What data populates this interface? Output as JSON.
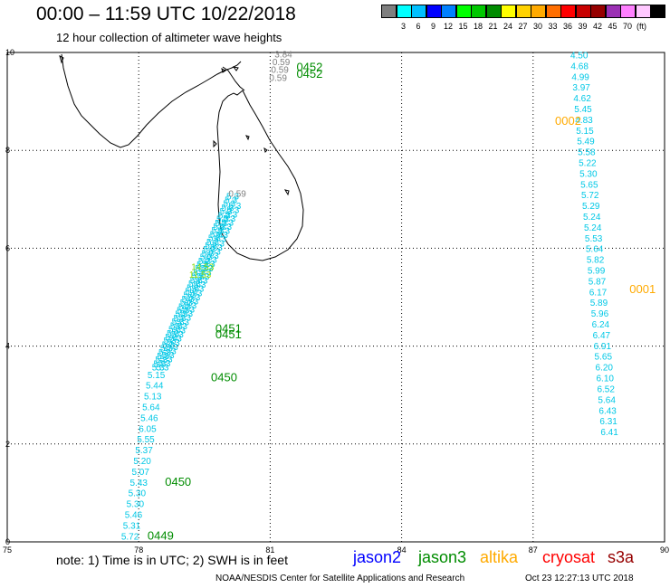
{
  "header": {
    "title": "00:00 – 11:59 UTC 10/22/2018",
    "subtitle": "12 hour collection of altimeter wave heights"
  },
  "colorbar": {
    "colors": [
      "#7f7f7f",
      "#00ffff",
      "#00c0ff",
      "#0000ff",
      "#0080ff",
      "#00ff00",
      "#00c800",
      "#008c00",
      "#ffff00",
      "#ffd200",
      "#ffaa00",
      "#ff6e00",
      "#ff0000",
      "#c80000",
      "#960000",
      "#9b30b4",
      "#ff80ff",
      "#ffc8ff",
      "#000000"
    ],
    "labels": [
      "3",
      "6",
      "9",
      "12",
      "15",
      "18",
      "21",
      "24",
      "27",
      "30",
      "33",
      "36",
      "39",
      "42",
      "45",
      "70"
    ],
    "unit": "(ft)"
  },
  "axes": {
    "x_ticks": [
      "75",
      "78",
      "81",
      "84",
      "87",
      "90"
    ],
    "y_ticks": [
      "0",
      "2",
      "4",
      "6",
      "8",
      "10"
    ]
  },
  "map_data": {
    "lon_range": [
      75,
      90
    ],
    "lat_range": [
      0,
      10
    ],
    "passes": [
      {
        "label": "0452",
        "lon": 81.6,
        "lat": 9.62,
        "color": "#008c00"
      },
      {
        "label": "0452",
        "lon": 81.6,
        "lat": 9.48,
        "color": "#008c00"
      },
      {
        "label": "0002",
        "lon": 87.5,
        "lat": 8.52,
        "color": "#ffaa00"
      },
      {
        "label": "0001",
        "lon": 89.2,
        "lat": 5.08,
        "color": "#ffaa00"
      },
      {
        "label": "0451",
        "lon": 79.75,
        "lat": 4.28,
        "color": "#008c00"
      },
      {
        "label": "0451",
        "lon": 79.75,
        "lat": 4.16,
        "color": "#008c00"
      },
      {
        "label": "0450",
        "lon": 79.65,
        "lat": 3.28,
        "color": "#008c00"
      },
      {
        "label": "0450",
        "lon": 78.6,
        "lat": 1.15,
        "color": "#008c00"
      },
      {
        "label": "0449",
        "lon": 78.2,
        "lat": 0.05,
        "color": "#008c00"
      }
    ],
    "east_track": [
      {
        "lon": 87.85,
        "lat": 9.88,
        "v": "4.50"
      },
      {
        "lon": 87.86,
        "lat": 9.66,
        "v": "4.68"
      },
      {
        "lon": 87.88,
        "lat": 9.44,
        "v": "4.99"
      },
      {
        "lon": 87.9,
        "lat": 9.22,
        "v": "3.97"
      },
      {
        "lon": 87.92,
        "lat": 9.0,
        "v": "4.62"
      },
      {
        "lon": 87.94,
        "lat": 8.78,
        "v": "5.45"
      },
      {
        "lon": 87.96,
        "lat": 8.56,
        "v": "4.83"
      },
      {
        "lon": 87.98,
        "lat": 8.34,
        "v": "5.15"
      },
      {
        "lon": 88.0,
        "lat": 8.12,
        "v": "5.49"
      },
      {
        "lon": 88.02,
        "lat": 7.9,
        "v": "5.58"
      },
      {
        "lon": 88.04,
        "lat": 7.68,
        "v": "5.22"
      },
      {
        "lon": 88.06,
        "lat": 7.46,
        "v": "5.30"
      },
      {
        "lon": 88.08,
        "lat": 7.24,
        "v": "5.65"
      },
      {
        "lon": 88.1,
        "lat": 7.02,
        "v": "5.72"
      },
      {
        "lon": 88.12,
        "lat": 6.8,
        "v": "5.29"
      },
      {
        "lon": 88.14,
        "lat": 6.58,
        "v": "5.24"
      },
      {
        "lon": 88.16,
        "lat": 6.36,
        "v": "5.24"
      },
      {
        "lon": 88.18,
        "lat": 6.14,
        "v": "5.53"
      },
      {
        "lon": 88.2,
        "lat": 5.92,
        "v": "5.64"
      },
      {
        "lon": 88.22,
        "lat": 5.7,
        "v": "5.82"
      },
      {
        "lon": 88.24,
        "lat": 5.48,
        "v": "5.99"
      },
      {
        "lon": 88.26,
        "lat": 5.26,
        "v": "5.87"
      },
      {
        "lon": 88.28,
        "lat": 5.04,
        "v": "6.17"
      },
      {
        "lon": 88.3,
        "lat": 4.82,
        "v": "5.89"
      },
      {
        "lon": 88.32,
        "lat": 4.6,
        "v": "5.96"
      },
      {
        "lon": 88.34,
        "lat": 4.38,
        "v": "6.24"
      },
      {
        "lon": 88.36,
        "lat": 4.16,
        "v": "6.47"
      },
      {
        "lon": 88.38,
        "lat": 3.94,
        "v": "6.91"
      },
      {
        "lon": 88.4,
        "lat": 3.72,
        "v": "5.65"
      },
      {
        "lon": 88.42,
        "lat": 3.5,
        "v": "6.20"
      },
      {
        "lon": 88.44,
        "lat": 3.28,
        "v": "6.10"
      },
      {
        "lon": 88.46,
        "lat": 3.06,
        "v": "6.52"
      },
      {
        "lon": 88.48,
        "lat": 2.84,
        "v": "5.64"
      },
      {
        "lon": 88.5,
        "lat": 2.62,
        "v": "6.43"
      },
      {
        "lon": 88.52,
        "lat": 2.4,
        "v": "6.31"
      },
      {
        "lon": 88.54,
        "lat": 2.18,
        "v": "6.41"
      }
    ],
    "west_track": [
      {
        "lon": 77.6,
        "lat": 0.05,
        "v": "5.72"
      },
      {
        "lon": 77.64,
        "lat": 0.27,
        "v": "5.31"
      },
      {
        "lon": 77.68,
        "lat": 0.49,
        "v": "5.46"
      },
      {
        "lon": 77.72,
        "lat": 0.71,
        "v": "5.30"
      },
      {
        "lon": 77.76,
        "lat": 0.93,
        "v": "5.30"
      },
      {
        "lon": 77.8,
        "lat": 1.15,
        "v": "5.43"
      },
      {
        "lon": 77.84,
        "lat": 1.37,
        "v": "5.07"
      },
      {
        "lon": 77.88,
        "lat": 1.59,
        "v": "5.20"
      },
      {
        "lon": 77.92,
        "lat": 1.81,
        "v": "5.37"
      },
      {
        "lon": 77.96,
        "lat": 2.03,
        "v": "5.55"
      },
      {
        "lon": 78.0,
        "lat": 2.25,
        "v": "6.05"
      },
      {
        "lon": 78.04,
        "lat": 2.47,
        "v": "5.46"
      },
      {
        "lon": 78.08,
        "lat": 2.69,
        "v": "5.64"
      },
      {
        "lon": 78.12,
        "lat": 2.91,
        "v": "5.13"
      },
      {
        "lon": 78.16,
        "lat": 3.13,
        "v": "5.44"
      },
      {
        "lon": 78.2,
        "lat": 3.35,
        "v": "5.15"
      }
    ],
    "west_dense": {
      "lon0": 78.3,
      "lat0": 3.5,
      "lon1": 80.0,
      "lat1": 7.0,
      "count": 46
    },
    "west_dense_b": {
      "lon0": 78.4,
      "lat0": 3.5,
      "lon1": 80.05,
      "lat1": 6.8,
      "count": 40
    },
    "west_highlights": [
      {
        "lon": 79.2,
        "lat": 5.55,
        "v": "14.53",
        "color": "#7fd700"
      },
      {
        "lon": 79.15,
        "lat": 5.4,
        "v": "11.53",
        "color": "#a0e000"
      },
      {
        "lon": 80.05,
        "lat": 7.05,
        "v": "0.59",
        "color": "#7f7f7f"
      }
    ],
    "north_grey": [
      {
        "lon": 81.1,
        "lat": 9.9,
        "v": "3.84"
      },
      {
        "lon": 81.05,
        "lat": 9.74,
        "v": "0.59"
      },
      {
        "lon": 81.02,
        "lat": 9.58,
        "v": "0.59"
      },
      {
        "lon": 80.98,
        "lat": 9.42,
        "v": "0.59"
      }
    ]
  },
  "footer": {
    "note": "note: 1) Time is in UTC; 2) SWH is in feet",
    "satellites": [
      {
        "name": "jason2",
        "color": "#0000ff"
      },
      {
        "name": "jason3",
        "color": "#008c00"
      },
      {
        "name": "altika",
        "color": "#ffaa00"
      },
      {
        "name": "cryosat",
        "color": "#ff0000"
      },
      {
        "name": "s3a",
        "color": "#960000"
      }
    ],
    "credit": "NOAA/NESDIS Center for Satellite Applications and Research",
    "timestamp": "Oct 23 12:27:13 UTC 2018"
  }
}
